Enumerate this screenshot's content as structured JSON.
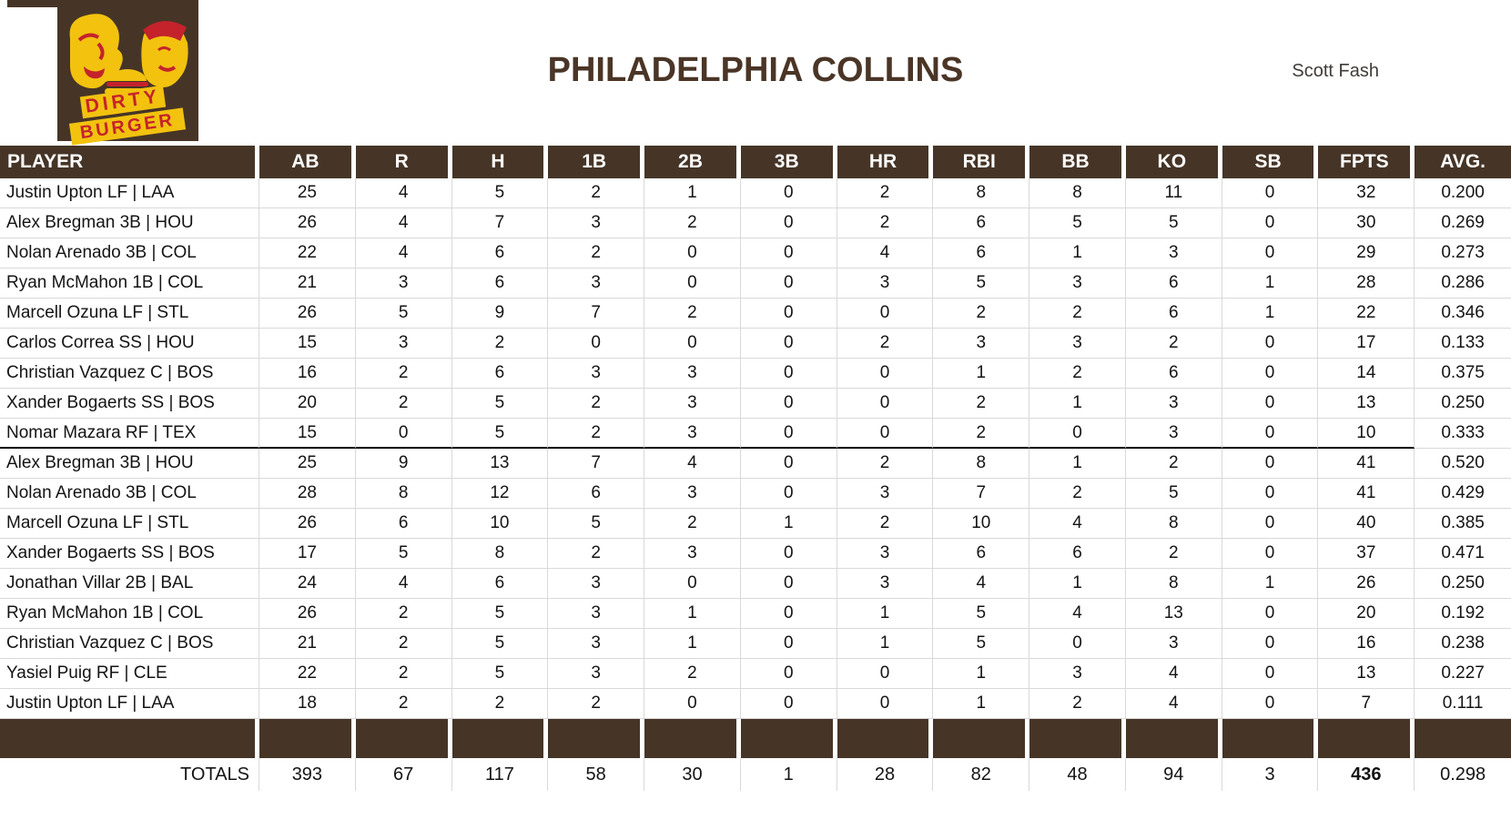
{
  "header": {
    "title": "PHILADELPHIA COLLINS",
    "owner": "Scott Fash"
  },
  "logo": {
    "line1": "DIRTY",
    "line2": "BURGER"
  },
  "colors": {
    "brown": "#463527",
    "yellow": "#F2C20F",
    "red": "#C4232C",
    "grid": "#D9D9D9",
    "title_text": "#4A3526",
    "divider": "#000000"
  },
  "table": {
    "columns": [
      "PLAYER",
      "AB",
      "R",
      "H",
      "1B",
      "2B",
      "3B",
      "HR",
      "RBI",
      "BB",
      "KO",
      "SB",
      "FPTS",
      "AVG."
    ],
    "rows": [
      {
        "player": "Justin Upton LF | LAA",
        "stats": [
          25,
          4,
          5,
          2,
          1,
          0,
          2,
          8,
          8,
          11,
          0,
          32,
          "0.200"
        ]
      },
      {
        "player": "Alex Bregman 3B | HOU",
        "stats": [
          26,
          4,
          7,
          3,
          2,
          0,
          2,
          6,
          5,
          5,
          0,
          30,
          "0.269"
        ]
      },
      {
        "player": "Nolan Arenado 3B | COL",
        "stats": [
          22,
          4,
          6,
          2,
          0,
          0,
          4,
          6,
          1,
          3,
          0,
          29,
          "0.273"
        ]
      },
      {
        "player": "Ryan McMahon 1B | COL",
        "stats": [
          21,
          3,
          6,
          3,
          0,
          0,
          3,
          5,
          3,
          6,
          1,
          28,
          "0.286"
        ]
      },
      {
        "player": "Marcell Ozuna LF | STL",
        "stats": [
          26,
          5,
          9,
          7,
          2,
          0,
          0,
          2,
          2,
          6,
          1,
          22,
          "0.346"
        ]
      },
      {
        "player": "Carlos Correa SS | HOU",
        "stats": [
          15,
          3,
          2,
          0,
          0,
          0,
          2,
          3,
          3,
          2,
          0,
          17,
          "0.133"
        ]
      },
      {
        "player": "Christian Vazquez C | BOS",
        "stats": [
          16,
          2,
          6,
          3,
          3,
          0,
          0,
          1,
          2,
          6,
          0,
          14,
          "0.375"
        ]
      },
      {
        "player": "Xander Bogaerts SS | BOS",
        "stats": [
          20,
          2,
          5,
          2,
          3,
          0,
          0,
          2,
          1,
          3,
          0,
          13,
          "0.250"
        ]
      },
      {
        "player": "Nomar Mazara RF | TEX",
        "stats": [
          15,
          0,
          5,
          2,
          3,
          0,
          0,
          2,
          0,
          3,
          0,
          10,
          "0.333"
        ]
      },
      {
        "player": "Alex Bregman 3B | HOU",
        "stats": [
          25,
          9,
          13,
          7,
          4,
          0,
          2,
          8,
          1,
          2,
          0,
          41,
          "0.520"
        ]
      },
      {
        "player": "Nolan Arenado 3B | COL",
        "stats": [
          28,
          8,
          12,
          6,
          3,
          0,
          3,
          7,
          2,
          5,
          0,
          41,
          "0.429"
        ]
      },
      {
        "player": "Marcell Ozuna LF | STL",
        "stats": [
          26,
          6,
          10,
          5,
          2,
          1,
          2,
          10,
          4,
          8,
          0,
          40,
          "0.385"
        ]
      },
      {
        "player": "Xander Bogaerts SS | BOS",
        "stats": [
          17,
          5,
          8,
          2,
          3,
          0,
          3,
          6,
          6,
          2,
          0,
          37,
          "0.471"
        ]
      },
      {
        "player": "Jonathan Villar 2B | BAL",
        "stats": [
          24,
          4,
          6,
          3,
          0,
          0,
          3,
          4,
          1,
          8,
          1,
          26,
          "0.250"
        ]
      },
      {
        "player": "Ryan McMahon 1B | COL",
        "stats": [
          26,
          2,
          5,
          3,
          1,
          0,
          1,
          5,
          4,
          13,
          0,
          20,
          "0.192"
        ]
      },
      {
        "player": "Christian Vazquez C | BOS",
        "stats": [
          21,
          2,
          5,
          3,
          1,
          0,
          1,
          5,
          0,
          3,
          0,
          16,
          "0.238"
        ]
      },
      {
        "player": "Yasiel Puig RF | CLE",
        "stats": [
          22,
          2,
          5,
          3,
          2,
          0,
          0,
          1,
          3,
          4,
          0,
          13,
          "0.227"
        ]
      },
      {
        "player": "Justin Upton LF | LAA",
        "stats": [
          18,
          2,
          2,
          2,
          0,
          0,
          0,
          1,
          2,
          4,
          0,
          7,
          "0.111"
        ]
      }
    ],
    "divider_after_row": 9,
    "totals": {
      "label": "TOTALS",
      "values": [
        393,
        67,
        117,
        58,
        30,
        1,
        28,
        82,
        48,
        94,
        3,
        436,
        "0.298"
      ]
    }
  }
}
